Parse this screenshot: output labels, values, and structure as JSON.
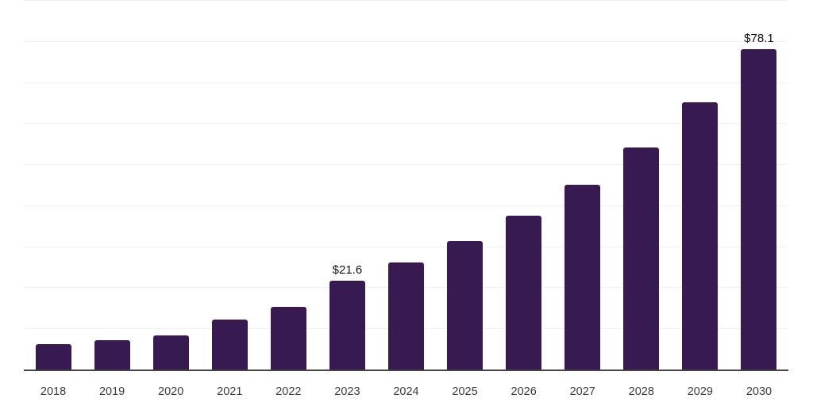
{
  "chart_data": {
    "type": "bar",
    "title": "",
    "xlabel": "",
    "ylabel": "",
    "categories": [
      "2018",
      "2019",
      "2020",
      "2021",
      "2022",
      "2023",
      "2024",
      "2025",
      "2026",
      "2027",
      "2028",
      "2029",
      "2030"
    ],
    "values": [
      6.2,
      7.1,
      8.3,
      12.2,
      15.3,
      21.6,
      26.0,
      31.2,
      37.5,
      45.0,
      54.1,
      65.0,
      78.1
    ],
    "points": [
      {
        "year": "2018",
        "value": 6.2,
        "label": ""
      },
      {
        "year": "2019",
        "value": 7.1,
        "label": ""
      },
      {
        "year": "2020",
        "value": 8.3,
        "label": ""
      },
      {
        "year": "2021",
        "value": 12.2,
        "label": ""
      },
      {
        "year": "2022",
        "value": 15.3,
        "label": ""
      },
      {
        "year": "2023",
        "value": 21.6,
        "label": "$21.6"
      },
      {
        "year": "2024",
        "value": 26.0,
        "label": ""
      },
      {
        "year": "2025",
        "value": 31.2,
        "label": ""
      },
      {
        "year": "2026",
        "value": 37.5,
        "label": ""
      },
      {
        "year": "2027",
        "value": 45.0,
        "label": ""
      },
      {
        "year": "2028",
        "value": 54.1,
        "label": ""
      },
      {
        "year": "2029",
        "value": 65.0,
        "label": ""
      },
      {
        "year": "2030",
        "value": 78.1,
        "label": "$78.1"
      }
    ],
    "value_prefix": "$",
    "ylim": [
      0,
      90
    ],
    "gridline_step": 10,
    "grid": true,
    "legend": false,
    "annotations": [
      "$21.6",
      "$78.1"
    ]
  },
  "style": {
    "bar_color": "#371A4F",
    "grid_color": "#F0F0F0",
    "axis_color": "#444444",
    "tick_label_color": "#3D3D3D",
    "value_label_color": "#111111",
    "background": "#FFFFFF"
  }
}
